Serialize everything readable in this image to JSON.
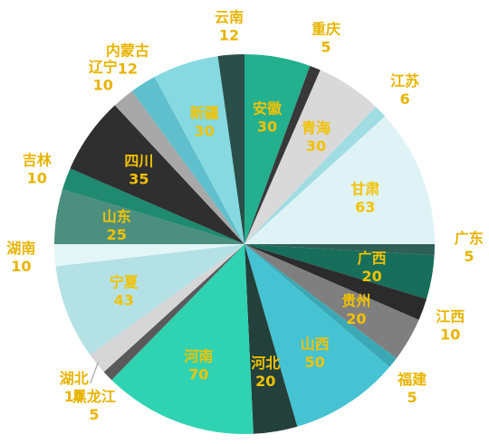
{
  "chart_data": {
    "type": "pie",
    "title": "",
    "start_angle_deg": 0,
    "direction": "clockwise",
    "label_color": "#e8b400",
    "slices": [
      {
        "label": "安徽",
        "value": 30,
        "color": "#22b08f",
        "label_pos": "inside"
      },
      {
        "label": "重庆",
        "value": 5,
        "color": "#383838",
        "label_pos": "outside"
      },
      {
        "label": "青海",
        "value": 30,
        "color": "#d9d9d9",
        "label_pos": "inside"
      },
      {
        "label": "江苏",
        "value": 6,
        "color": "#9fdde3",
        "label_pos": "outside"
      },
      {
        "label": "甘肃",
        "value": 63,
        "color": "#dff3f6",
        "label_pos": "inside"
      },
      {
        "label": "广东",
        "value": 5,
        "color": "#2f5f55",
        "label_pos": "outside"
      },
      {
        "label": "广西",
        "value": 20,
        "color": "#176e5a",
        "label_pos": "inside"
      },
      {
        "label": "江西",
        "value": 10,
        "color": "#2b2b2b",
        "label_pos": "outside"
      },
      {
        "label": "贵州",
        "value": 20,
        "color": "#7f7f7f",
        "label_pos": "inside"
      },
      {
        "label": "福建",
        "value": 5,
        "color": "#3aa9b5",
        "label_pos": "outside"
      },
      {
        "label": "山西",
        "value": 50,
        "color": "#46c3d3",
        "label_pos": "inside"
      },
      {
        "label": "河北",
        "value": 20,
        "color": "#23403a",
        "label_pos": "inside"
      },
      {
        "label": "河南",
        "value": 70,
        "color": "#2fd3b2",
        "label_pos": "inside"
      },
      {
        "label": "黑龙江",
        "value": 5,
        "color": "#5a5a5a",
        "label_pos": "outside"
      },
      {
        "label": "湖北",
        "value": 10,
        "color": "#d6d6d6",
        "label_pos": "outside"
      },
      {
        "label": "宁夏",
        "value": 43,
        "color": "#b4e1e6",
        "label_pos": "inside"
      },
      {
        "label": "湖南",
        "value": 10,
        "color": "#e4f5f7",
        "label_pos": "outside"
      },
      {
        "label": "山东",
        "value": 25,
        "color": "#4d8f7f",
        "label_pos": "inside"
      },
      {
        "label": "吉林",
        "value": 10,
        "color": "#1f8a70",
        "label_pos": "outside"
      },
      {
        "label": "四川",
        "value": 35,
        "color": "#2f2f2f",
        "label_pos": "inside"
      },
      {
        "label": "辽宁",
        "value": 10,
        "color": "#a8a8a8",
        "label_pos": "outside"
      },
      {
        "label": "内蒙古",
        "value": 12,
        "color": "#5fbfcc",
        "label_pos": "outside"
      },
      {
        "label": "新疆",
        "value": 30,
        "color": "#86d9e0",
        "label_pos": "inside"
      },
      {
        "label": "云南",
        "value": 12,
        "color": "#2a4f49",
        "label_pos": "outside"
      }
    ]
  }
}
